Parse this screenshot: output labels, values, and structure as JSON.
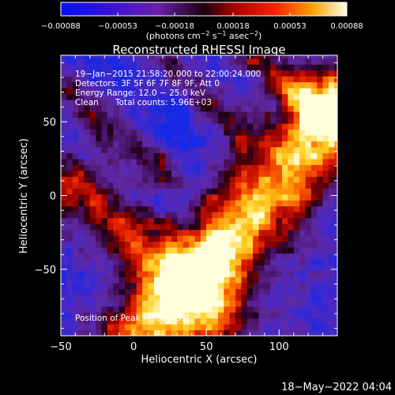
{
  "chart_data": {
    "type": "heatmap",
    "title": "Reconstructed RHESSI Image",
    "xlabel": "Heliocentric X (arcsec)",
    "ylabel": "Heliocentric Y (arcsec)",
    "xlim": [
      -50,
      140
    ],
    "ylim": [
      -95,
      95
    ],
    "xticks": [
      -50,
      0,
      50,
      100
    ],
    "xtick_labels": [
      "−50",
      "0",
      "50",
      "100"
    ],
    "yticks": [
      -50,
      0,
      50
    ],
    "ytick_labels": [
      "−50",
      "0",
      "50"
    ],
    "colorbar": {
      "range": [
        -0.00088,
        0.00088
      ],
      "ticks": [
        -0.00088,
        -0.00053,
        -0.00018,
        0.00018,
        0.00053,
        0.00088
      ],
      "tick_labels": [
        "−0.00088",
        "−0.00053",
        "−0.00018",
        "0.00018",
        "0.00053",
        "0.00088"
      ],
      "unit_label": "(photons cm",
      "unit_exp1": "−2",
      "unit_mid": " s",
      "unit_exp2": "−1",
      "unit_mid2": " asec",
      "unit_exp3": "−2",
      "unit_end": ")"
    },
    "annotations": {
      "line1": "19−Jan−2015 21:58:20.000 to 22:00:24.000",
      "line2": "Detectors: 3F 5F 6F 7F 8F 9F, Att 0",
      "line3": "Energy Range: 12.0 − 25.0 keV",
      "line4_a": "Clean",
      "line4_b": "Total counts: 5.96E+03",
      "peak": "Position of Peak = [62,−39]"
    },
    "peak": {
      "x": 62,
      "y": -39
    },
    "bands": [
      {
        "x0": 10,
        "y0": -95,
        "x1": 140,
        "y1": 60,
        "width": 22,
        "amp": 1.0
      },
      {
        "x0": -45,
        "y0": 10,
        "x1": 60,
        "y1": -80,
        "width": 14,
        "amp": 0.62
      },
      {
        "x0": -40,
        "y0": 70,
        "x1": 20,
        "y1": 20,
        "width": 10,
        "amp": 0.45
      },
      {
        "x0": 85,
        "y0": 95,
        "x1": 140,
        "y1": 50,
        "width": 9,
        "amp": 0.55
      },
      {
        "x0": 20,
        "y0": 95,
        "x1": 75,
        "y1": 40,
        "width": 8,
        "amp": 0.35
      }
    ],
    "footer_date": "18−May−2022 04:04"
  }
}
